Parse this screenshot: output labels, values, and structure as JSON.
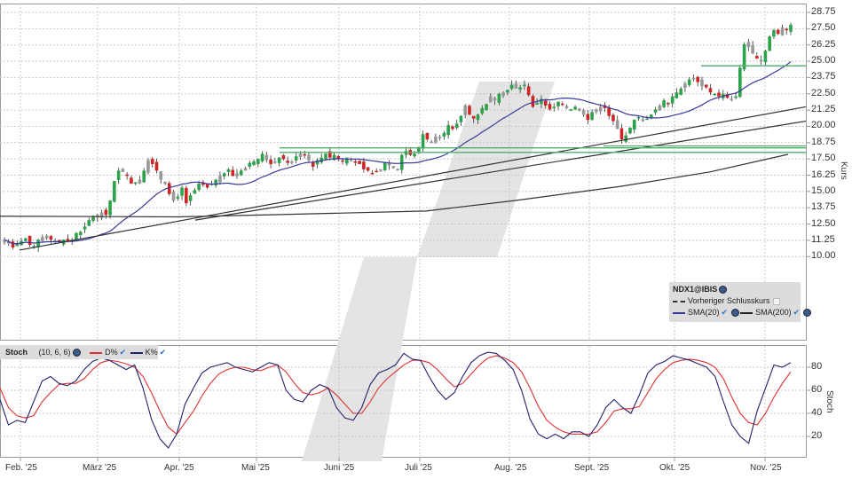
{
  "chart_data": [
    {
      "type": "candlestick",
      "title": "NDX1@IBIS",
      "ylabel": "Kurs",
      "ylim": [
        9.0,
        29.5
      ],
      "yticks": [
        "28.75",
        "27.50",
        "26.25",
        "25.00",
        "23.75",
        "22.50",
        "21.25",
        "20.00",
        "18.75",
        "17.50",
        "16.25",
        "15.00",
        "13.75",
        "12.50",
        "11.25",
        "10.00"
      ],
      "xticks": [
        "Feb. '25",
        "März '25",
        "Apr. '25",
        "Mai '25",
        "Juni '25",
        "Juli '25",
        "Aug. '25",
        "Sept. '25",
        "Okt. '25",
        "Nov. '25"
      ],
      "grid": true,
      "legend": {
        "title": "NDX1@IBIS",
        "items": [
          "Vorheriger Schlusskurs",
          "SMA(20)",
          "SMA(200)"
        ]
      },
      "closes": [
        11.3,
        11.0,
        10.7,
        11.0,
        11.2,
        11.4,
        10.9,
        10.8,
        11.3,
        11.5,
        11.4,
        11.3,
        11.2,
        11.1,
        11.3,
        11.2,
        11.3,
        11.8,
        11.9,
        12.3,
        12.8,
        13.1,
        13.0,
        13.4,
        13.2,
        14.3,
        15.8,
        16.6,
        16.5,
        16.2,
        15.6,
        15.7,
        15.9,
        16.6,
        17.4,
        17.1,
        16.6,
        15.9,
        15.6,
        14.8,
        14.3,
        14.6,
        15.3,
        14.1,
        14.7,
        15.1,
        15.6,
        15.5,
        15.3,
        15.6,
        15.9,
        16.2,
        16.4,
        16.7,
        16.2,
        16.4,
        16.6,
        16.8,
        17.2,
        17.3,
        17.5,
        17.9,
        17.4,
        17.1,
        17.3,
        17.6,
        17.5,
        17.2,
        17.3,
        17.7,
        17.9,
        17.8,
        17.4,
        16.9,
        17.4,
        17.6,
        17.9,
        17.6,
        17.8,
        17.5,
        17.3,
        17.6,
        17.4,
        17.2,
        17.1,
        16.7,
        16.6,
        16.4,
        16.5,
        16.7,
        17.2,
        17.0,
        16.8,
        16.7,
        17.8,
        18.1,
        17.8,
        17.9,
        18.4,
        19.4,
        19.0,
        18.8,
        19.2,
        19.1,
        19.5,
        20.1,
        19.8,
        20.2,
        20.8,
        21.6,
        20.9,
        20.6,
        20.9,
        21.4,
        21.7,
        22.3,
        22.0,
        22.5,
        22.6,
        22.8,
        23.2,
        22.9,
        23.0,
        23.2,
        22.4,
        21.5,
        21.8,
        22.1,
        21.6,
        21.3,
        21.5,
        21.9,
        21.7,
        21.4,
        21.3,
        21.5,
        21.2,
        20.9,
        20.5,
        21.1,
        21.3,
        21.5,
        21.4,
        20.8,
        20.4,
        19.8,
        19.0,
        19.3,
        19.9,
        20.5,
        20.7,
        20.4,
        20.6,
        20.9,
        21.3,
        21.6,
        22.0,
        21.8,
        22.3,
        22.6,
        22.9,
        23.3,
        23.6,
        23.7,
        23.4,
        23.1,
        23.0,
        22.6,
        22.5,
        22.3,
        22.5,
        22.2,
        22.1,
        22.3,
        24.5,
        26.3,
        26.1,
        25.6,
        25.2,
        25.0,
        25.8,
        26.9,
        27.4,
        27.1,
        27.6,
        27.4,
        27.8
      ],
      "series": [
        {
          "name": "SMA(20)",
          "color": "#3a3a9c"
        },
        {
          "name": "SMA(200)",
          "color": "#333333"
        },
        {
          "name": "Support/Resistance",
          "color": "#4caf68",
          "levels": [
            24.6,
            18.4,
            18.1,
            17.95
          ]
        },
        {
          "name": "Trendlines",
          "color": "#333333"
        }
      ]
    },
    {
      "type": "line",
      "title": "Stoch",
      "params": "(10, 6, 6)",
      "ylabel": "Stoch",
      "ylim": [
        0,
        100
      ],
      "yticks": [
        "80",
        "60",
        "40",
        "20"
      ],
      "series": [
        {
          "name": "D%",
          "color": "#e03030"
        },
        {
          "name": "K%",
          "color": "#22226e"
        }
      ]
    }
  ],
  "main_legend": {
    "symbol": "NDX1@IBIS",
    "prev_close": "Vorheriger Schlusskurs",
    "sma20": "SMA(20)",
    "sma200": "SMA(200)"
  },
  "stoch_legend": {
    "name": "Stoch",
    "params": "(10, 6, 6)",
    "d": "D%",
    "k": "K%"
  },
  "axis": {
    "price_title": "Kurs",
    "stoch_title": "Stoch",
    "price_ticks": [
      "28.75",
      "27.50",
      "26.25",
      "25.00",
      "23.75",
      "22.50",
      "21.25",
      "20.00",
      "18.75",
      "17.50",
      "16.25",
      "15.00",
      "13.75",
      "12.50",
      "11.25",
      "10.00"
    ],
    "stoch_ticks": [
      "80",
      "60",
      "40",
      "20"
    ],
    "months": [
      "Feb. '25",
      "März '25",
      "Apr. '25",
      "Mai '25",
      "Juni '25",
      "Juli '25",
      "Aug. '25",
      "Sept. '25",
      "Okt. '25",
      "Nov. '25"
    ]
  },
  "colors": {
    "up": "#2aa34a",
    "down": "#d02525",
    "neutral": "#999999",
    "sma20": "#3a3a9c",
    "sma200": "#333333",
    "support": "#4caf68",
    "stoch_d": "#e03030",
    "stoch_k": "#22226e"
  }
}
